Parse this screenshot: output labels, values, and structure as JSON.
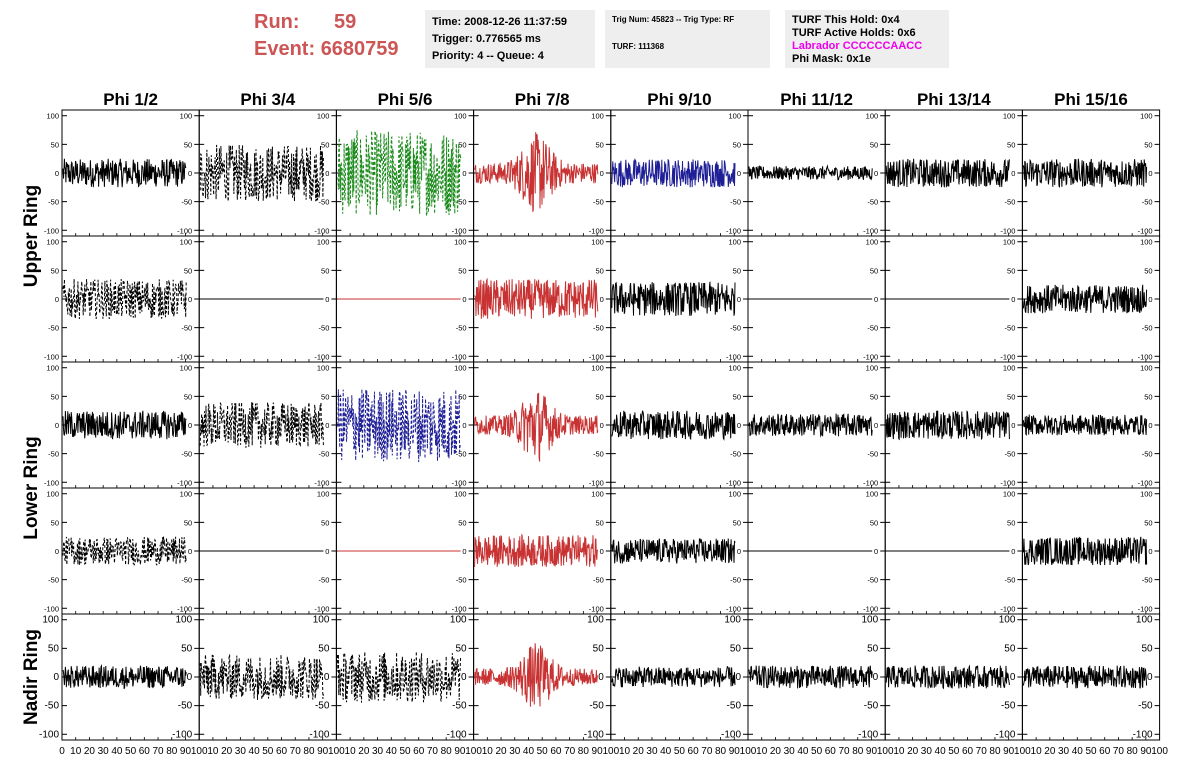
{
  "header": {
    "run_label": "Run:",
    "run_value": "59",
    "event_label": "Event:",
    "event_value": "6680759",
    "time": "Time: 2008-12-26 11:37:59",
    "trigger": "Trigger: 0.776565 ms",
    "priority": "Priority: 4 -- Queue: 4",
    "trig_num": "Trig Num: 45823 -- Trig Type: RF",
    "turf": "TURF: 111368",
    "turf_hold": "TURF This Hold: 0x4",
    "turf_active": "TURF Active Holds: 0x6",
    "labrador": "Labrador CCCCCCAACC",
    "phi_mask": "Phi Mask: 0x1e"
  },
  "colors": {
    "run": "#cc5555",
    "labrador": "#ee00ee",
    "black": "#000000",
    "green": "#1a8a1a",
    "red": "#c83232",
    "blue": "#1e1e96"
  },
  "chart_data": {
    "type": "line",
    "title": "",
    "columns": [
      "Phi 1/2",
      "Phi 3/4",
      "Phi 5/6",
      "Phi 7/8",
      "Phi 9/10",
      "Phi 11/12",
      "Phi 13/14",
      "Phi 15/16"
    ],
    "rows": [
      "Upper Ring",
      "Lower Ring",
      "Nadir Ring"
    ],
    "xlim": [
      0,
      100
    ],
    "x_ticks": [
      0,
      10,
      20,
      30,
      40,
      50,
      60,
      70,
      80,
      90,
      100
    ],
    "ylim": [
      -110,
      110
    ],
    "y_ticks": [
      100,
      50,
      0,
      -50,
      -100
    ],
    "panels": [
      [
        {
          "color": "black",
          "style": "solid",
          "amp": 25,
          "env": "flat"
        },
        {
          "color": "black",
          "style": "dashed",
          "amp": 50,
          "env": "flat"
        },
        {
          "color": "green",
          "style": "dashed",
          "amp": 75,
          "env": "flat"
        },
        {
          "color": "red",
          "style": "solid",
          "amp": 60,
          "env": "pulse"
        },
        {
          "color": "blue",
          "style": "solid",
          "amp": 25,
          "env": "flat"
        },
        {
          "color": "black",
          "style": "solid",
          "amp": 12,
          "env": "flat"
        },
        {
          "color": "black",
          "style": "solid",
          "amp": 25,
          "env": "flat"
        },
        {
          "color": "black",
          "style": "solid",
          "amp": 25,
          "env": "flat"
        }
      ],
      [
        {
          "color": "black",
          "style": "dashed",
          "amp": 35,
          "env": "flat"
        },
        {
          "color": "black",
          "style": "solid",
          "amp": 0,
          "env": "flat"
        },
        {
          "color": "red",
          "style": "solid",
          "amp": 0,
          "env": "flat"
        },
        {
          "color": "red",
          "style": "solid",
          "amp": 35,
          "env": "flat"
        },
        {
          "color": "black",
          "style": "solid",
          "amp": 30,
          "env": "flat"
        },
        {
          "color": "black",
          "style": "solid",
          "amp": 0,
          "env": "flat"
        },
        {
          "color": "black",
          "style": "solid",
          "amp": 0,
          "env": "flat"
        },
        {
          "color": "black",
          "style": "solid",
          "amp": 25,
          "env": "flat"
        }
      ],
      [
        {
          "color": "black",
          "style": "solid",
          "amp": 25,
          "env": "flat"
        },
        {
          "color": "black",
          "style": "dashed",
          "amp": 40,
          "env": "flat"
        },
        {
          "color": "blue",
          "style": "dashed",
          "amp": 65,
          "env": "flat"
        },
        {
          "color": "red",
          "style": "solid",
          "amp": 55,
          "env": "pulse"
        },
        {
          "color": "black",
          "style": "solid",
          "amp": 25,
          "env": "flat"
        },
        {
          "color": "black",
          "style": "solid",
          "amp": 20,
          "env": "flat"
        },
        {
          "color": "black",
          "style": "solid",
          "amp": 25,
          "env": "flat"
        },
        {
          "color": "black",
          "style": "solid",
          "amp": 18,
          "env": "flat"
        }
      ],
      [
        {
          "color": "black",
          "style": "dashed",
          "amp": 25,
          "env": "flat"
        },
        {
          "color": "black",
          "style": "solid",
          "amp": 0,
          "env": "flat"
        },
        {
          "color": "red",
          "style": "solid",
          "amp": 0,
          "env": "flat"
        },
        {
          "color": "red",
          "style": "solid",
          "amp": 28,
          "env": "flat"
        },
        {
          "color": "black",
          "style": "solid",
          "amp": 22,
          "env": "flat"
        },
        {
          "color": "black",
          "style": "solid",
          "amp": 0,
          "env": "flat"
        },
        {
          "color": "black",
          "style": "solid",
          "amp": 0,
          "env": "flat"
        },
        {
          "color": "black",
          "style": "solid",
          "amp": 25,
          "env": "flat"
        }
      ],
      [
        {
          "color": "black",
          "style": "solid",
          "amp": 20,
          "env": "flat"
        },
        {
          "color": "black",
          "style": "dashed",
          "amp": 40,
          "env": "flat"
        },
        {
          "color": "black",
          "style": "dashed",
          "amp": 45,
          "env": "flat"
        },
        {
          "color": "red",
          "style": "solid",
          "amp": 50,
          "env": "pulse"
        },
        {
          "color": "black",
          "style": "solid",
          "amp": 18,
          "env": "flat"
        },
        {
          "color": "black",
          "style": "solid",
          "amp": 20,
          "env": "flat"
        },
        {
          "color": "black",
          "style": "solid",
          "amp": 20,
          "env": "flat"
        },
        {
          "color": "black",
          "style": "solid",
          "amp": 20,
          "env": "flat"
        }
      ]
    ]
  }
}
